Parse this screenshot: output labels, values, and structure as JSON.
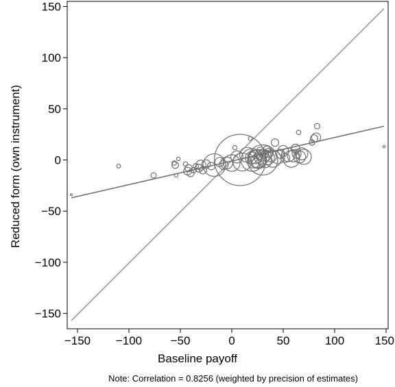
{
  "chart_data": {
    "type": "scatter",
    "title": "",
    "xlabel": "Baseline payoff",
    "ylabel": "Reduced form (own instrument)",
    "note": "Note: Correlation = 0.8256 (weighted by precision of estimates)",
    "xlim": [
      -160,
      152
    ],
    "ylim": [
      -165,
      155
    ],
    "xticks": [
      -150,
      -100,
      -50,
      0,
      50,
      100,
      150
    ],
    "yticks": [
      -150,
      -100,
      -50,
      0,
      50,
      100,
      150
    ],
    "xtick_labels": [
      "−150",
      "−100",
      "−50",
      "0",
      "50",
      "100",
      "150"
    ],
    "ytick_labels": [
      "−150",
      "−100",
      "−50",
      "0",
      "50",
      "100",
      "150"
    ],
    "grid": false,
    "colors": {
      "marker": "#707070",
      "fit_line": "#707070",
      "diagonal": "#9a9a9a",
      "axis": "#000000"
    },
    "lines": [
      {
        "kind": "45-degree",
        "x": [
          -156,
          148
        ],
        "y": [
          -157,
          148
        ]
      },
      {
        "kind": "fitted",
        "x": [
          -156,
          148
        ],
        "y": [
          -37,
          33
        ]
      }
    ],
    "points": [
      {
        "x": -156,
        "y": -34,
        "size": 0.6
      },
      {
        "x": -110,
        "y": -6,
        "size": 1.3
      },
      {
        "x": -76,
        "y": -15,
        "size": 1.8
      },
      {
        "x": -56,
        "y": -3,
        "size": 1.5
      },
      {
        "x": -55,
        "y": -5,
        "size": 2.2
      },
      {
        "x": -54,
        "y": -15,
        "size": 1.2
      },
      {
        "x": -52,
        "y": 1,
        "size": 1.2
      },
      {
        "x": -45,
        "y": -4,
        "size": 1.5
      },
      {
        "x": -43,
        "y": -11,
        "size": 2.6
      },
      {
        "x": -42,
        "y": -8,
        "size": 2.4
      },
      {
        "x": -40,
        "y": -13,
        "size": 2.3
      },
      {
        "x": -37,
        "y": -10,
        "size": 1.8
      },
      {
        "x": -35,
        "y": -6,
        "size": 1.8
      },
      {
        "x": -32,
        "y": -8,
        "size": 2.6
      },
      {
        "x": -30,
        "y": -5,
        "size": 3.3
      },
      {
        "x": -28,
        "y": -10,
        "size": 2.5
      },
      {
        "x": -25,
        "y": -4,
        "size": 2.8
      },
      {
        "x": -20,
        "y": -6,
        "size": 2.5
      },
      {
        "x": -17,
        "y": -5,
        "size": 7.5
      },
      {
        "x": -12,
        "y": -2,
        "size": 3.0
      },
      {
        "x": -8,
        "y": -5,
        "size": 3.0
      },
      {
        "x": -5,
        "y": -3,
        "size": 4.0
      },
      {
        "x": 0,
        "y": -3,
        "size": 5.5
      },
      {
        "x": 3,
        "y": 12,
        "size": 1.4
      },
      {
        "x": 5,
        "y": 3,
        "size": 4.0
      },
      {
        "x": 8,
        "y": 0,
        "size": 17.0
      },
      {
        "x": 10,
        "y": -2,
        "size": 6.0
      },
      {
        "x": 15,
        "y": 5,
        "size": 5.0
      },
      {
        "x": 18,
        "y": 21,
        "size": 1.3
      },
      {
        "x": 19,
        "y": 2,
        "size": 4.0
      },
      {
        "x": 20,
        "y": 0,
        "size": 7.5
      },
      {
        "x": 21,
        "y": -2,
        "size": 4.0
      },
      {
        "x": 22,
        "y": 6,
        "size": 2.5
      },
      {
        "x": 23,
        "y": 3,
        "size": 4.5
      },
      {
        "x": 24,
        "y": -3,
        "size": 3.0
      },
      {
        "x": 25,
        "y": 1,
        "size": 6.0
      },
      {
        "x": 26,
        "y": -1,
        "size": 5.0
      },
      {
        "x": 27,
        "y": 4,
        "size": 2.5
      },
      {
        "x": 28,
        "y": 9,
        "size": 2.5
      },
      {
        "x": 29,
        "y": 3,
        "size": 5.0
      },
      {
        "x": 30,
        "y": 0,
        "size": 10.0
      },
      {
        "x": 31,
        "y": 6,
        "size": 3.0
      },
      {
        "x": 32,
        "y": -1,
        "size": 4.5
      },
      {
        "x": 33,
        "y": 4,
        "size": 3.5
      },
      {
        "x": 34,
        "y": 10,
        "size": 2.5
      },
      {
        "x": 35,
        "y": 2,
        "size": 4.5
      },
      {
        "x": 36,
        "y": 7,
        "size": 3.0
      },
      {
        "x": 38,
        "y": 4,
        "size": 4.0
      },
      {
        "x": 40,
        "y": 1,
        "size": 5.5
      },
      {
        "x": 42,
        "y": 17,
        "size": 2.5
      },
      {
        "x": 45,
        "y": 3,
        "size": 4.5
      },
      {
        "x": 47,
        "y": 6,
        "size": 3.0
      },
      {
        "x": 50,
        "y": 9,
        "size": 3.5
      },
      {
        "x": 52,
        "y": 2,
        "size": 3.0
      },
      {
        "x": 55,
        "y": 5,
        "size": 4.5
      },
      {
        "x": 58,
        "y": 1,
        "size": 5.5
      },
      {
        "x": 60,
        "y": 4,
        "size": 4.0
      },
      {
        "x": 62,
        "y": 11,
        "size": 3.0
      },
      {
        "x": 63,
        "y": 6,
        "size": 3.0
      },
      {
        "x": 65,
        "y": 27,
        "size": 1.5
      },
      {
        "x": 66,
        "y": 3,
        "size": 4.0
      },
      {
        "x": 68,
        "y": 6,
        "size": 4.0
      },
      {
        "x": 70,
        "y": 3,
        "size": 5.0
      },
      {
        "x": 78,
        "y": 17,
        "size": 1.8
      },
      {
        "x": 80,
        "y": 21,
        "size": 2.5
      },
      {
        "x": 82,
        "y": 22,
        "size": 3.0
      },
      {
        "x": 83,
        "y": 33,
        "size": 1.8
      },
      {
        "x": 148,
        "y": 13,
        "size": 0.8
      }
    ]
  }
}
